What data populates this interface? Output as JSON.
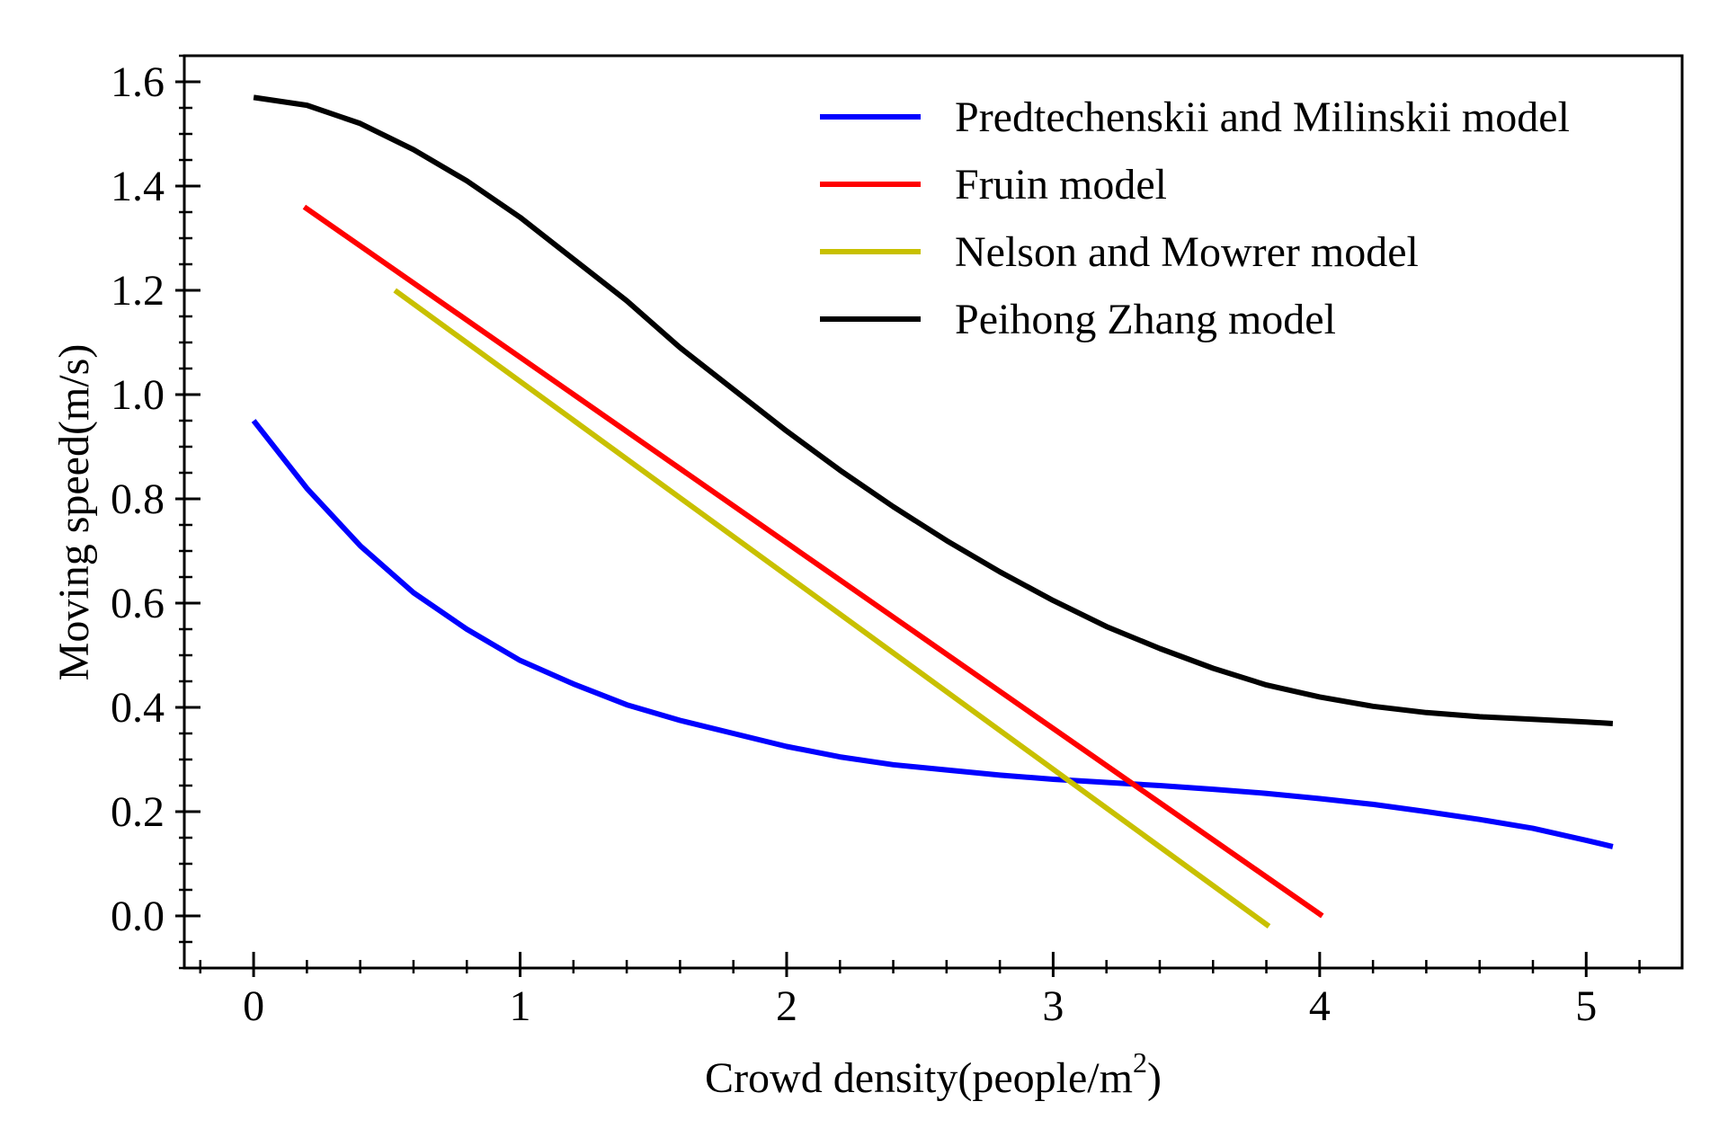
{
  "chart_data": {
    "type": "line",
    "title": "",
    "xlabel": "Crowd density(people/m",
    "xlabel_sup": "2",
    "xlabel_suffix": ")",
    "ylabel": "Moving speed(m/s)",
    "xlim": [
      -0.26,
      5.36
    ],
    "ylim": [
      -0.1,
      1.65
    ],
    "x_ticks": [
      0,
      1,
      2,
      3,
      4,
      5
    ],
    "x_tick_labels": [
      "0",
      "1",
      "2",
      "3",
      "4",
      "5"
    ],
    "y_ticks": [
      0.0,
      0.2,
      0.4,
      0.6,
      0.8,
      1.0,
      1.2,
      1.4,
      1.6
    ],
    "y_tick_labels": [
      "0.0",
      "0.2",
      "0.4",
      "0.6",
      "0.8",
      "1.0",
      "1.2",
      "1.4",
      "1.6"
    ],
    "x_minor_step": 0.2,
    "y_minor_step": 0.05,
    "grid": false,
    "legend_position": "top-right",
    "series": [
      {
        "name": "Predtechenskii and Milinskii model",
        "color": "#0000ff",
        "x": [
          0,
          0.2,
          0.4,
          0.6,
          0.8,
          1.0,
          1.2,
          1.4,
          1.6,
          1.8,
          2.0,
          2.2,
          2.4,
          2.6,
          2.8,
          3.0,
          3.2,
          3.4,
          3.6,
          3.8,
          4.0,
          4.2,
          4.4,
          4.6,
          4.8,
          5.0,
          5.1
        ],
        "y": [
          0.95,
          0.82,
          0.71,
          0.62,
          0.55,
          0.49,
          0.445,
          0.405,
          0.375,
          0.35,
          0.325,
          0.305,
          0.29,
          0.28,
          0.27,
          0.262,
          0.256,
          0.25,
          0.243,
          0.235,
          0.225,
          0.214,
          0.2,
          0.185,
          0.168,
          0.145,
          0.133
        ]
      },
      {
        "name": "Fruin model",
        "color": "#ff0000",
        "x": [
          0.19,
          4.01
        ],
        "y": [
          1.36,
          0.0
        ]
      },
      {
        "name": "Nelson and Mowrer model",
        "color": "#c8c000",
        "x": [
          0.53,
          3.81
        ],
        "y": [
          1.2,
          -0.02
        ]
      },
      {
        "name": "Peihong Zhang model",
        "color": "#000000",
        "x": [
          0,
          0.2,
          0.4,
          0.6,
          0.8,
          1.0,
          1.2,
          1.4,
          1.6,
          1.8,
          2.0,
          2.2,
          2.4,
          2.6,
          2.8,
          3.0,
          3.2,
          3.4,
          3.6,
          3.8,
          4.0,
          4.2,
          4.4,
          4.6,
          4.8,
          5.0,
          5.1
        ],
        "y": [
          1.57,
          1.555,
          1.52,
          1.47,
          1.41,
          1.34,
          1.26,
          1.18,
          1.09,
          1.01,
          0.93,
          0.855,
          0.785,
          0.72,
          0.66,
          0.605,
          0.555,
          0.513,
          0.475,
          0.443,
          0.42,
          0.402,
          0.39,
          0.382,
          0.377,
          0.372,
          0.369
        ]
      }
    ]
  }
}
